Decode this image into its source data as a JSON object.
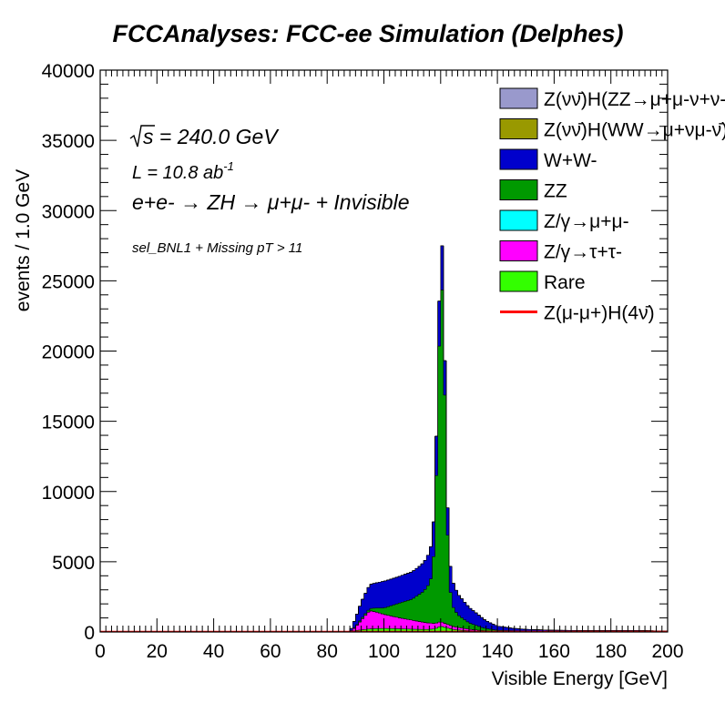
{
  "chart_data": {
    "type": "area",
    "title": "FCCAnalyses: FCC-ee Simulation (Delphes)",
    "xlabel": "Visible Energy [GeV]",
    "ylabel": "events / 1.0 GeV",
    "xlim": [
      0,
      200
    ],
    "ylim": [
      0,
      40000
    ],
    "x_ticks": [
      "0",
      "20",
      "40",
      "60",
      "80",
      "100",
      "120",
      "140",
      "160",
      "180",
      "200"
    ],
    "y_ticks": [
      "0",
      "5000",
      "10000",
      "15000",
      "20000",
      "25000",
      "30000",
      "35000",
      "40000"
    ],
    "stacked": true,
    "bin_width": 1.0,
    "legend_position": "top-right",
    "annotations": {
      "sqrt_s": "s = 240.0 GeV",
      "lumi": "L = 10.8 ab",
      "lumi_exp": "-1",
      "process": "e+e- → ZH → μ+μ- + Invisible",
      "selection": "sel_BNL1 + Missing pT > 11"
    },
    "series": [
      {
        "name": "Rare",
        "color": "#33ff00",
        "x": [
          88,
          90,
          95,
          100,
          110,
          115,
          118,
          120,
          122,
          125,
          130,
          135,
          140,
          200
        ],
        "y": [
          0,
          100,
          220,
          260,
          200,
          180,
          220,
          420,
          300,
          160,
          90,
          50,
          20,
          0
        ]
      },
      {
        "name": "Z/γ→τ+τ-",
        "color": "#ff00ff",
        "x": [
          88,
          90,
          93,
          95,
          97,
          100,
          105,
          110,
          115,
          120,
          125,
          130,
          135,
          138,
          140,
          200
        ],
        "y": [
          0,
          250,
          900,
          1300,
          1200,
          1000,
          800,
          640,
          480,
          320,
          200,
          110,
          40,
          10,
          0,
          0
        ]
      },
      {
        "name": "Z/γ→μ+μ-",
        "color": "#00ffff",
        "x": [
          88,
          200
        ],
        "y": [
          0,
          0
        ]
      },
      {
        "name": "ZZ",
        "color": "#009900",
        "x": [
          88,
          95,
          100,
          105,
          110,
          114,
          116,
          117,
          118,
          119,
          120,
          121,
          122,
          123,
          124,
          126,
          130,
          135,
          140,
          150,
          160,
          200
        ],
        "y": [
          0,
          150,
          450,
          1000,
          1500,
          2200,
          2800,
          3500,
          6000,
          15000,
          24300,
          23000,
          9500,
          3200,
          1500,
          900,
          450,
          200,
          100,
          50,
          20,
          0
        ]
      },
      {
        "name": "W+W-",
        "color": "#0000cc",
        "x": [
          88,
          90,
          92,
          95,
          100,
          105,
          110,
          113,
          115,
          117,
          118,
          119,
          120,
          121,
          122,
          124,
          126,
          128,
          130,
          133,
          136,
          140,
          145,
          150,
          160,
          170,
          180,
          190,
          200
        ],
        "y": [
          0,
          600,
          1200,
          1700,
          1900,
          1900,
          1950,
          2000,
          2100,
          2350,
          2600,
          3000,
          3400,
          2900,
          2000,
          1800,
          1500,
          1300,
          1100,
          850,
          550,
          300,
          180,
          120,
          90,
          80,
          90,
          100,
          60
        ]
      },
      {
        "name": "Z(νν̄)H(WW→μ+νμ-ν̄)",
        "color": "#999900",
        "x": [
          88,
          200
        ],
        "y": [
          0,
          0
        ]
      },
      {
        "name": "Z(νν̄)H(ZZ→μ+μ-ν+ν-)",
        "color": "#9999cc",
        "x": [
          88,
          200
        ],
        "y": [
          0,
          0
        ]
      },
      {
        "name": "Z(μ-μ+)H(4ν)",
        "color": "#ff0000",
        "style": "line",
        "x": [
          0,
          200
        ],
        "y": [
          0,
          0
        ]
      }
    ],
    "legend": [
      {
        "label": "Z(νν̄)H(ZZ→μ+μ-ν+ν-)",
        "color": "#9999cc",
        "kind": "box"
      },
      {
        "label": "Z(νν̄)H(WW→μ+νμ-ν̄)",
        "color": "#999900",
        "kind": "box"
      },
      {
        "label": "W+W-",
        "color": "#0000cc",
        "kind": "box"
      },
      {
        "label": "ZZ",
        "color": "#009900",
        "kind": "box"
      },
      {
        "label": "Z/γ→μ+μ-",
        "color": "#00ffff",
        "kind": "box"
      },
      {
        "label": "Z/γ→τ+τ-",
        "color": "#ff00ff",
        "kind": "box"
      },
      {
        "label": "Rare",
        "color": "#33ff00",
        "kind": "box"
      },
      {
        "label": "Z(μ-μ+)H(4ν̄)",
        "color": "#ff0000",
        "kind": "line"
      }
    ]
  }
}
